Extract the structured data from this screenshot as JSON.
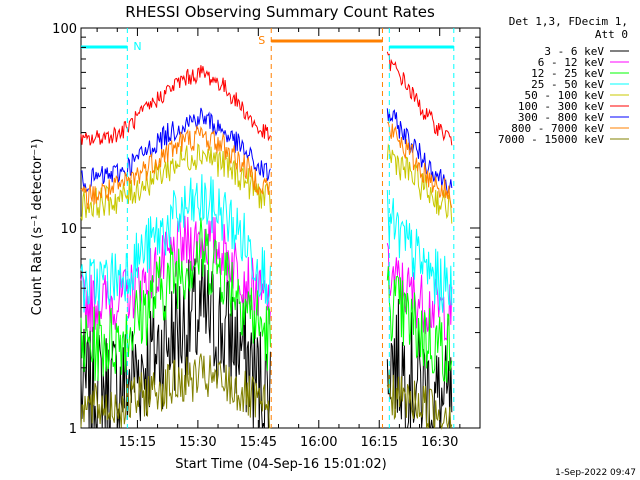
{
  "chart_data": {
    "type": "line",
    "title": "RHESSI Observing Summary Count Rates",
    "xlabel": "Start Time (04-Sep-16 15:01:02)",
    "ylabel": "Count Rate (s⁻¹ detector⁻¹)",
    "x_scale": "time",
    "x_range_minutes": [
      0,
      99
    ],
    "y_scale": "log",
    "ylim": [
      1,
      100
    ],
    "x_tick_labels": [
      "15:15",
      "15:30",
      "15:45",
      "16:00",
      "16:15",
      "16:30"
    ],
    "x_tick_minutes": [
      14,
      29,
      44,
      59,
      74,
      89
    ],
    "y_tick_labels": [
      "1",
      "10",
      "100"
    ],
    "y_ticks": [
      1,
      10,
      100
    ],
    "legend_header": [
      "Det 1,3, FDecim 1,",
      "Att 0"
    ],
    "legend_position": "right",
    "series": [
      {
        "name": "3 - 6 keV",
        "color": "#000000",
        "x": [
          0,
          10,
          20,
          25,
          30,
          35,
          40,
          44,
          47,
          76,
          80,
          85,
          89,
          92
        ],
        "y": [
          1.5,
          1.6,
          2.6,
          3.2,
          3.6,
          3.1,
          2.5,
          1.7,
          1.5,
          2.4,
          2.0,
          1.6,
          1.3,
          1.2
        ]
      },
      {
        "name": "6 - 12 keV",
        "color": "#ff00ff",
        "x": [
          0,
          10,
          20,
          25,
          30,
          35,
          40,
          44,
          47,
          76,
          80,
          85,
          89,
          92
        ],
        "y": [
          4.2,
          4.4,
          6.5,
          8.0,
          9.0,
          7.8,
          6.0,
          4.5,
          4.2,
          6.0,
          5.0,
          4.2,
          3.9,
          3.8
        ]
      },
      {
        "name": "12 - 25 keV",
        "color": "#00ff00",
        "x": [
          0,
          10,
          20,
          25,
          30,
          35,
          40,
          44,
          47,
          76,
          80,
          85,
          89,
          92
        ],
        "y": [
          2.5,
          2.8,
          5.0,
          6.5,
          7.5,
          6.3,
          4.5,
          3.3,
          2.8,
          4.5,
          3.6,
          2.9,
          2.6,
          2.5
        ]
      },
      {
        "name": "25 - 50 keV",
        "color": "#00ffff",
        "x": [
          0,
          10,
          20,
          25,
          30,
          35,
          40,
          44,
          47,
          76,
          80,
          85,
          89,
          92
        ],
        "y": [
          5.0,
          5.8,
          9.5,
          12.0,
          13.5,
          12.0,
          9.0,
          6.5,
          5.5,
          11.0,
          8.5,
          6.5,
          5.3,
          5.0
        ]
      },
      {
        "name": "50 - 100 keV",
        "color": "#c8c800",
        "x": [
          0,
          10,
          20,
          25,
          30,
          35,
          40,
          44,
          47,
          76,
          80,
          85,
          89,
          92
        ],
        "y": [
          13.0,
          14.0,
          19.0,
          22.0,
          24.0,
          21.0,
          18.0,
          15.0,
          13.5,
          24.0,
          20.0,
          16.0,
          13.5,
          12.5
        ]
      },
      {
        "name": "100 - 300 keV",
        "color": "#ff0000",
        "x": [
          0,
          10,
          20,
          25,
          30,
          35,
          40,
          44,
          47,
          76,
          80,
          85,
          89,
          92
        ],
        "y": [
          27.0,
          30.0,
          46.0,
          55.0,
          60.0,
          52.0,
          40.0,
          31.0,
          29.0,
          70.0,
          55.0,
          38.0,
          31.0,
          28.0
        ]
      },
      {
        "name": "300 - 800 keV",
        "color": "#0000ff",
        "x": [
          0,
          10,
          20,
          25,
          30,
          35,
          40,
          44,
          47,
          76,
          80,
          85,
          89,
          92
        ],
        "y": [
          17.0,
          19.0,
          28.0,
          33.0,
          36.0,
          31.0,
          25.0,
          20.0,
          18.5,
          38.0,
          30.0,
          22.0,
          18.0,
          16.5
        ]
      },
      {
        "name": "800 - 7000 keV",
        "color": "#ff8000",
        "x": [
          0,
          10,
          20,
          25,
          30,
          35,
          40,
          44,
          47,
          76,
          80,
          85,
          89,
          92
        ],
        "y": [
          14.0,
          16.0,
          23.0,
          27.0,
          29.0,
          26.0,
          21.0,
          17.0,
          16.0,
          32.0,
          26.0,
          19.0,
          16.0,
          14.5
        ]
      },
      {
        "name": "7000 - 15000 keV",
        "color": "#808000",
        "x": [
          0,
          10,
          20,
          25,
          30,
          35,
          40,
          44,
          47,
          76,
          80,
          85,
          89,
          92
        ],
        "y": [
          1.25,
          1.3,
          1.6,
          1.7,
          1.8,
          1.7,
          1.5,
          1.3,
          1.2,
          1.5,
          1.4,
          1.3,
          1.2,
          1.2
        ]
      }
    ],
    "annotations": [
      {
        "label": "N",
        "color": "#00ffff"
      },
      {
        "label": "S",
        "color": "#ff8000"
      }
    ],
    "timestamp": "1-Sep-2022 09:47"
  }
}
